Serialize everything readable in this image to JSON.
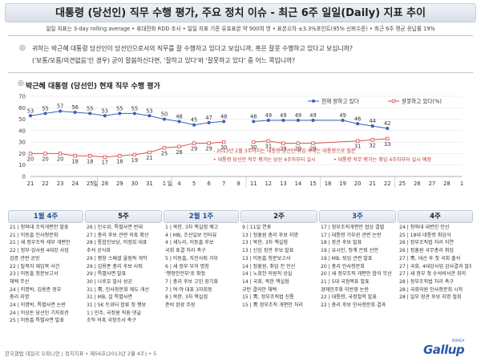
{
  "header": {
    "title": "대통령 (당선인) 직무 수행 평가, 주요 정치 이슈 - 최근 6주 일일(Daily) 지표 추이",
    "meta": "일일 지표는 3-day rolling average  • 휴대전화 RDD 조사  • 일일 지표 기준 유효표본 약 900여 명  • 표본오차 ±3.3%포인트(95% 신뢰수준)  • 최근 6주 평균 응답률 19%"
  },
  "question": {
    "line1": "귀하는 박근혜 대통령 당선인이 당선인으로서의 직무를 잘 수행하고 있다고 보십니까, 혹은 잘못 수행하고 있다고 보십니까?",
    "line2": "('보통/모름/의견없음'인 경우) 굳이 말씀하신다면, '잘하고 있다'와 '잘못하고 있다' 중 어느 쪽입니까?"
  },
  "chart_heading": "박근혜 대통령 (당선인) 현재 직무 수행 평가",
  "chart_data": {
    "type": "line",
    "x": [
      "21",
      "22",
      "23",
      "24",
      "25",
      "28",
      "29",
      "30",
      "31",
      "1",
      "4",
      "5",
      "6",
      "7",
      "8",
      "11",
      "12",
      "13",
      "14",
      "15",
      "18",
      "19",
      "20",
      "21",
      "22",
      "25",
      "26",
      "27",
      "28",
      "1"
    ],
    "x_month_labels": [
      {
        "after": "25",
        "label": "일"
      },
      {
        "after": "1",
        "label": "일"
      }
    ],
    "ylim": [
      0,
      70
    ],
    "yticks": [
      0,
      10,
      20,
      30,
      40,
      50,
      60,
      70
    ],
    "series": [
      {
        "name": "현재 잘하고 있다",
        "color": "#3a64b4",
        "marker": "circle",
        "values": [
          53,
          55,
          57,
          56,
          55,
          53,
          55,
          55,
          53,
          50,
          48,
          45,
          47,
          48,
          null,
          null,
          null,
          null,
          null,
          null,
          null,
          null,
          null,
          null,
          null,
          null,
          null,
          null,
          null,
          null
        ],
        "labels": [
          "53",
          "55",
          "57",
          "56",
          "55",
          "53",
          "55",
          "55",
          "53",
          "50",
          "48",
          "45",
          "47",
          "48"
        ]
      },
      {
        "name": "현재 잘하고 있다",
        "color": "#3a64b4",
        "marker": "circle",
        "values": [
          null,
          null,
          null,
          null,
          null,
          null,
          null,
          null,
          null,
          null,
          null,
          null,
          null,
          null,
          null,
          48,
          49,
          49,
          49,
          49,
          null,
          49,
          46,
          44,
          42,
          null,
          null,
          null,
          null,
          null
        ],
        "labels": [
          "48",
          "49",
          "49",
          "49",
          "49",
          "49",
          "46",
          "44",
          "42"
        ]
      },
      {
        "name": "잘못하고 있다(%)",
        "color": "#d9534f",
        "marker": "square-open",
        "values": [
          20,
          20,
          20,
          18,
          18,
          17,
          18,
          19,
          21,
          25,
          26,
          29,
          29,
          30,
          null,
          null,
          null,
          null,
          null,
          null,
          null,
          null,
          null,
          null,
          null,
          null,
          null,
          null,
          null,
          null
        ],
        "labels": [
          "20",
          "20",
          "20",
          "18",
          "18",
          "17",
          "18",
          "19",
          "21",
          "25",
          "26",
          "29",
          "29",
          "30"
        ]
      },
      {
        "name": "잘못하고 있다(%)",
        "color": "#d9534f",
        "marker": "square-open",
        "values": [
          null,
          null,
          null,
          null,
          null,
          null,
          null,
          null,
          null,
          null,
          null,
          null,
          null,
          null,
          null,
          30,
          31,
          29,
          29,
          29,
          null,
          null,
          31,
          32,
          33,
          null,
          null,
          null,
          null,
          null
        ],
        "labels": [
          "30",
          "31",
          "29",
          "29",
          "29",
          "31",
          "32",
          "33"
        ]
      }
    ],
    "annotations": [
      "2013년 2월 3주까지는 대통령 당선인 취임 후에는 대통령으로 질문",
      "대통령 당선인 직무 평가는 당선 4주차부터 실시",
      "대통령 직무 평가는 취임 4주차부터 실시 예정"
    ],
    "legend_placement": "top-right",
    "grid": true
  },
  "weeks": [
    {
      "label": "1월 4주",
      "highlight": true,
      "events": [
        "21 | 청와대 조직개편안 발표",
        "21 | 이동흡 인사청문회",
        "21 | 새 정부조직 세부 개편안",
        "22 | 정부·감사원 4대강 사업",
        "     검증 관련 공방",
        "22 | 탈북자 재입북 사건",
        "23 | 이동흡 청문보고서",
        "     채택 무산",
        "24 | 이명박, 김용준 정부",
        "     총리 지명",
        "24 | 이명박, 특별사면 논란",
        "24 | 이상돈 당선인 기자회견",
        "25 | 이동흡 특별사면 발표"
      ]
    },
    {
      "label": "5주",
      "highlight": false,
      "events": [
        "26 | 인수위, 특별사면 반대",
        "27 | 총리 후보 관련 의혹 확산",
        "28 | 통합진보당, 이정희 대표",
        "     추석 공식화",
        "29 | 평창 스페셜 올림픽 개막",
        "29 | 김용준 총리 후보 사퇴",
        "29 | 특별사면 발표",
        "30 | 나로호 발사 성공",
        "31 | 靑, 인사청문회 제도 개선",
        "31 | MB, 설 특별사면",
        "31 | 5K 트위터 합류 첫 행보",
        "1 | 민주, 국정원 직원 댓글",
        "     조작 의혹 국정조사 촉구"
      ]
    },
    {
      "label": "2월 1주",
      "highlight": true,
      "events": [
        "1 | 북한, 3차 핵실험 예고",
        "4 | MB, 조선일보 인터뷰",
        "4 | 새누리, 이동흡 후보",
        "     국회 표결 처리 촉구",
        "5 | 이동흡, 자진사퇴 거부",
        "6 | 새 정부 부처 명칭",
        "     '행정안전부'로 확정",
        "7 | 총리 후보 고민 장기화",
        "7 | 여·야 대표 3자회동",
        "8 | 북한, 3차 핵실험",
        "     준비 완료 주장"
      ]
    },
    {
      "label": "2주",
      "highlight": false,
      "events": [
        "9 | 11일 연휴",
        "13 | 정홍원 총리 후보 지명",
        "13 | 북한, 3차 핵실험",
        "13 | 신임 장관 후보 발표",
        "13 | 이동흡 청문보고서",
        "14 | 정홍원, 취임 전 인선",
        "14 | 노희찬 의원직 상실",
        "14 | 국회, 북한 핵실험",
        "     규탄 결의안 채택",
        "15 | 靑, 정부조직법 진통",
        "15 | 靑 정부조직 개편안 처리"
      ]
    },
    {
      "label": "3주",
      "highlight": true,
      "events": [
        "17 | 정부조직개편안 협상 결렬",
        "17 | 대통령 거부권 관련 논란",
        "18 | 장관 후보 발표",
        "19 | 유시민, 정계 은퇴 선언",
        "19 | MB, 퇴임 관련 발표",
        "20 | 총리 인사청문회",
        "20 | 새 정부조직 개편안 합의 무산",
        "21 | 5대 국정목표 발표",
        "     경제민주화 미반영 논란",
        "22 | 대통령, 국정철학 발표",
        "22 | 총리 후보 인사청문회 결과"
      ]
    },
    {
      "label": "4주",
      "highlight": false,
      "events": [
        "24 | 청와대 대변인 인선",
        "25 | 18대 대통령 취임식",
        "26 | 정부조직법 처리 지연",
        "26 | 정홍원 국무총리 취임",
        "27 | 靑, 대선 후 첫 국회 출석",
        "27 | 국회, 4대강사업 감사결과 발표",
        "27 | 새 정부 첫 수석비서관 회의",
        "28 | 정부조직법 처리 촉구",
        "28 | 국회의원 인사청문회 시작",
        "28 | 일부 장관 후보 지명 철회"
      ]
    }
  ],
  "footer": "한국갤럽 데일리 오피니언 | 정치지표 • 제56호(2013년 2월 4주) • 5",
  "logo": {
    "text": "Gallup",
    "sub": "KOREA"
  }
}
